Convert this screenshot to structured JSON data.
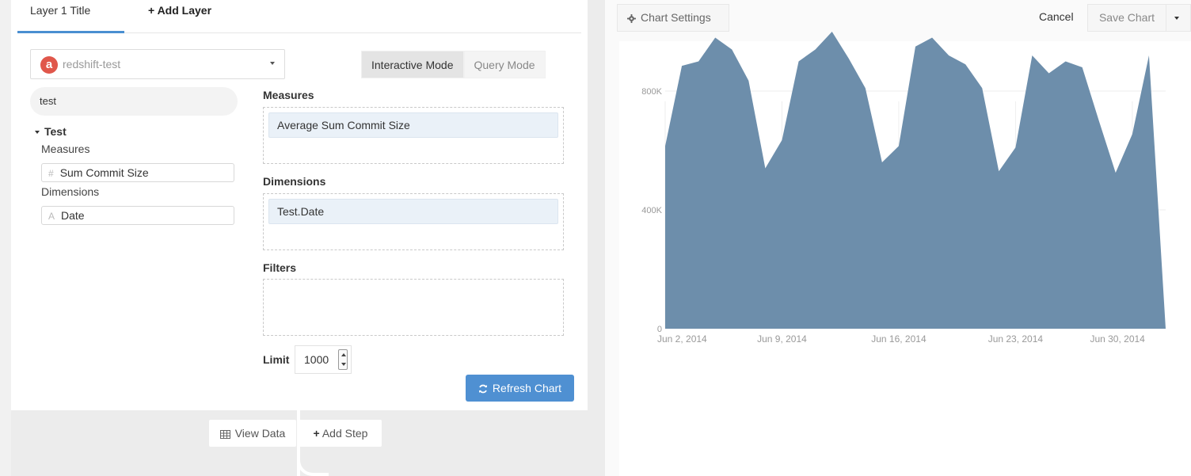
{
  "tabs": {
    "active_label": "Layer 1 Title",
    "add_label": "Add Layer"
  },
  "datasource": {
    "logo_letter": "a",
    "name": "redshift-test"
  },
  "modes": {
    "interactive": "Interactive Mode",
    "query": "Query Mode"
  },
  "search": {
    "value": "test"
  },
  "tree": {
    "group": "Test",
    "measures_label": "Measures",
    "measure_field": "Sum Commit Size",
    "dimensions_label": "Dimensions",
    "dimension_field": "Date"
  },
  "builder": {
    "measures_label": "Measures",
    "measure_item": "Average Sum Commit Size",
    "dimensions_label": "Dimensions",
    "dimension_item": "Test.Date",
    "filters_label": "Filters",
    "limit_label": "Limit",
    "limit_value": "1000",
    "refresh_label": "Refresh Chart"
  },
  "steps": {
    "view_data": "View Data",
    "add_step": "Add Step"
  },
  "toolbar": {
    "chart_settings": "Chart Settings",
    "cancel": "Cancel",
    "save": "Save Chart"
  },
  "colors": {
    "accent": "#4f90d2",
    "area": "#6d8eab",
    "logo": "#e0574b"
  },
  "chart_data": {
    "type": "area",
    "x_start": "2014-06-02",
    "x_ticks": [
      "Jun 2, 2014",
      "Jun 9, 2014",
      "Jun 16, 2014",
      "Jun 23, 2014",
      "Jun 30, 2014"
    ],
    "y_ticks": [
      "0",
      "400K",
      "800K"
    ],
    "ylim": [
      0,
      1000000
    ],
    "grid": true,
    "series": [
      {
        "values": [
          615000,
          885000,
          900000,
          980000,
          940000,
          835000,
          540000,
          635000,
          900000,
          940000,
          1000000,
          910000,
          810000,
          560000,
          615000,
          950000,
          980000,
          920000,
          890000,
          810000,
          530000,
          610000,
          920000,
          860000,
          900000,
          880000,
          700000,
          525000,
          655000,
          920000,
          0
        ]
      }
    ]
  }
}
